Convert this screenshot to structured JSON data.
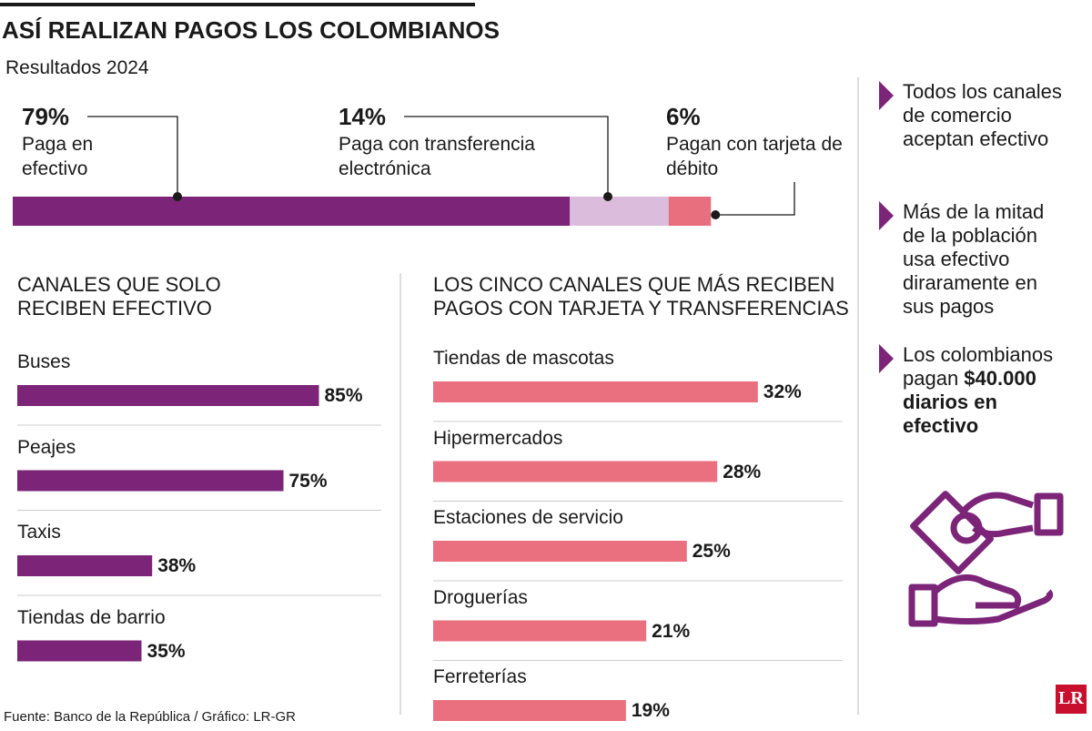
{
  "title": "ASÍ REALIZAN PAGOS LOS COLOMBIANOS",
  "subtitle": "Resultados 2024",
  "source": "Fuente: Banco de la República / Gráfico: LR-GR",
  "logo": "LR",
  "notes": [
    [
      "Todos los canales de comercio aceptan efectivo"
    ],
    [
      "Más de la mitad de la población usa efectivo diraramente en sus pagos"
    ],
    [
      "Los colombianos pagan ",
      "$40.000 diarios en efectivo"
    ]
  ],
  "chart_data": [
    {
      "type": "stacked_bar",
      "orientation": "horizontal",
      "xlim": [
        0,
        100
      ],
      "series": [
        {
          "name": "Paga en efectivo",
          "color": "#7b2478",
          "values": [
            79
          ],
          "value_labels": [
            "79%"
          ]
        },
        {
          "name": "Paga con transferencia electrónica",
          "color": "#dcbcdc",
          "values": [
            14
          ],
          "value_labels": [
            "14%"
          ]
        },
        {
          "name": "Pagan con tarjeta de débito",
          "color": "#e86f7e",
          "values": [
            6
          ],
          "value_labels": [
            "6%"
          ]
        }
      ]
    },
    {
      "type": "bar",
      "orientation": "horizontal",
      "title": "CANALES QUE SOLO RECIBEN EFECTIVO",
      "categories": [
        "Buses",
        "Peajes",
        "Taxis",
        "Tiendas de barrio"
      ],
      "values": [
        85,
        75,
        38,
        35
      ],
      "value_labels": [
        "85%",
        "75%",
        "38%",
        "35%"
      ],
      "color": "#7b2478",
      "xlim": [
        0,
        100
      ]
    },
    {
      "type": "bar",
      "orientation": "horizontal",
      "title": "LOS CINCO CANALES QUE MÁS RECIBEN PAGOS CON TARJETA Y TRANSFERENCIAS",
      "categories": [
        "Tiendas de mascotas",
        "Hipermercados",
        "Estaciones de servicio",
        "Droguerías",
        "Ferreterías"
      ],
      "values": [
        32,
        28,
        25,
        21,
        19
      ],
      "value_labels": [
        "32%",
        "28%",
        "25%",
        "21%",
        "19%"
      ],
      "color": "#ea6f7f",
      "xlim": [
        0,
        40
      ]
    }
  ]
}
